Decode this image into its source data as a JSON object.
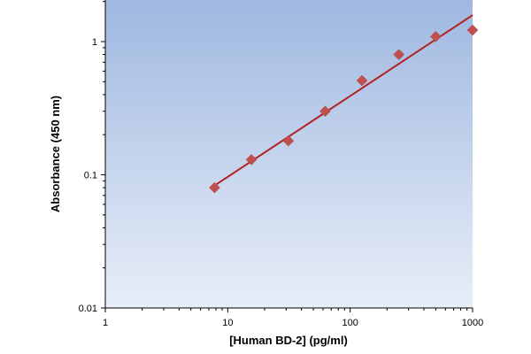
{
  "chart_data": {
    "type": "scatter",
    "title": "",
    "xlabel": "[Human BD-2] (pg/ml)",
    "ylabel": "Absorbance (450 nm)",
    "x_scale": "log",
    "y_scale": "log",
    "xlim": [
      1,
      1000
    ],
    "ylim": [
      0.01,
      2
    ],
    "x_ticks": [
      1,
      10,
      100,
      1000
    ],
    "x_tick_labels": [
      "1",
      "10",
      "100",
      "1000"
    ],
    "y_ticks": [
      0.01,
      0.1,
      1
    ],
    "y_tick_labels": [
      "0.01",
      "0.1",
      "1"
    ],
    "grid": false,
    "legend": "none",
    "series": [
      {
        "marker": "diamond",
        "color": "#c0504d",
        "x": [
          7.8,
          15.6,
          31.25,
          62.5,
          125,
          250,
          500,
          1000
        ],
        "y": [
          0.08,
          0.13,
          0.18,
          0.3,
          0.51,
          0.8,
          1.09,
          1.22
        ]
      }
    ],
    "fit_line": {
      "color": "#b22222",
      "x": [
        7.8,
        1000
      ],
      "y": [
        0.083,
        1.58
      ]
    },
    "plot_background": [
      "#9fb8e0",
      "#e8eef8"
    ]
  }
}
